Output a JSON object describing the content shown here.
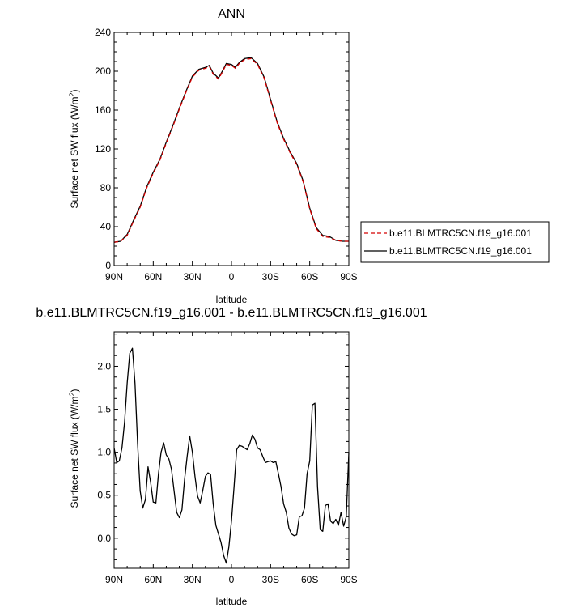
{
  "chart_data": [
    {
      "type": "line",
      "title": "ANN",
      "xlabel": "latitude",
      "ylabel": "Surface net SW flux (W/m",
      "ylabel_sup": "2",
      "ylabel_close": ")",
      "xlim": [
        90,
        -90
      ],
      "ylim": [
        0,
        240
      ],
      "xticks": [
        90,
        60,
        30,
        0,
        -30,
        -60,
        -90
      ],
      "xtick_labels": [
        "90N",
        "60N",
        "30N",
        "0",
        "30S",
        "60S",
        "90S"
      ],
      "yticks": [
        0,
        40,
        80,
        120,
        160,
        200,
        240
      ],
      "ytick_labels": [
        "0",
        "40",
        "80",
        "120",
        "160",
        "200",
        "240"
      ],
      "legend_position": "right",
      "x": [
        90,
        85,
        80,
        75,
        70,
        65,
        60,
        55,
        50,
        45,
        40,
        35,
        30,
        25,
        20,
        17,
        14,
        10,
        7,
        4,
        0,
        -3,
        -6,
        -10,
        -15,
        -20,
        -25,
        -30,
        -35,
        -40,
        -45,
        -50,
        -55,
        -60,
        -65,
        -70,
        -75,
        -80,
        -85,
        -90
      ],
      "series": [
        {
          "name": "b.e11.BLMTRC5CN.f19_g16.001",
          "color": "#d40000",
          "dash": "dashed",
          "values": [
            24,
            25,
            31,
            46,
            60,
            80,
            95,
            108,
            126,
            143,
            161,
            178,
            194,
            201,
            203,
            205,
            197,
            192,
            199,
            207,
            206,
            203,
            208,
            212,
            213,
            207,
            193,
            170,
            147,
            130,
            116,
            104,
            86,
            58,
            38,
            30,
            29,
            26,
            25,
            25
          ]
        },
        {
          "name": "b.e11.BLMTRC5CN.f19_g16.001",
          "color": "#000000",
          "dash": "solid",
          "values": [
            24,
            25,
            32,
            47,
            61,
            81,
            96,
            109,
            127,
            144,
            162,
            179,
            195,
            202,
            204,
            206,
            198,
            193,
            200,
            208,
            207,
            204,
            209,
            213,
            214,
            208,
            194,
            171,
            148,
            131,
            117,
            105,
            87,
            59,
            39,
            31,
            30,
            26,
            25,
            25
          ]
        }
      ]
    },
    {
      "type": "line",
      "title": "b.e11.BLMTRC5CN.f19_g16.001 - b.e11.BLMTRC5CN.f19_g16.001",
      "xlabel": "latitude",
      "ylabel": "Surface net SW flux (W/m",
      "ylabel_sup": "2",
      "ylabel_close": ")",
      "xlim": [
        90,
        -90
      ],
      "ylim": [
        -0.35,
        2.4
      ],
      "xticks": [
        90,
        60,
        30,
        0,
        -30,
        -60,
        -90
      ],
      "xtick_labels": [
        "90N",
        "60N",
        "30N",
        "0",
        "30S",
        "60S",
        "90S"
      ],
      "yticks": [
        0,
        0.5,
        1,
        1.5,
        2
      ],
      "ytick_labels": [
        "0.0",
        "0.5",
        "1.0",
        "1.5",
        "2.0"
      ],
      "series": [
        {
          "color": "#000000",
          "dash": "solid",
          "x": [
            90,
            88,
            86,
            84,
            82,
            80,
            78,
            76,
            74,
            72,
            70,
            68,
            66,
            64,
            62,
            60,
            58,
            56,
            54,
            52,
            50,
            48,
            46,
            44,
            42,
            40,
            38,
            36,
            34,
            32,
            30,
            28,
            26,
            24,
            22,
            20,
            18,
            16,
            14,
            12,
            10,
            8,
            6,
            4,
            2,
            0,
            -2,
            -4,
            -6,
            -8,
            -10,
            -12,
            -14,
            -16,
            -18,
            -20,
            -22,
            -24,
            -26,
            -28,
            -30,
            -32,
            -34,
            -36,
            -38,
            -40,
            -42,
            -44,
            -46,
            -48,
            -50,
            -52,
            -54,
            -56,
            -58,
            -60,
            -62,
            -64,
            -66,
            -68,
            -70,
            -72,
            -74,
            -76,
            -78,
            -80,
            -82,
            -84,
            -86,
            -88,
            -90
          ],
          "values": [
            1.05,
            0.88,
            0.9,
            1.05,
            1.35,
            1.8,
            2.15,
            2.21,
            1.8,
            1.1,
            0.55,
            0.35,
            0.45,
            0.83,
            0.65,
            0.42,
            0.41,
            0.75,
            1.0,
            1.11,
            0.97,
            0.92,
            0.8,
            0.55,
            0.3,
            0.24,
            0.33,
            0.68,
            0.95,
            1.19,
            1.0,
            0.72,
            0.49,
            0.41,
            0.56,
            0.72,
            0.76,
            0.74,
            0.4,
            0.15,
            0.05,
            -0.05,
            -0.2,
            -0.29,
            -0.1,
            0.2,
            0.6,
            1.03,
            1.08,
            1.07,
            1.05,
            1.03,
            1.1,
            1.2,
            1.15,
            1.05,
            1.03,
            0.95,
            0.88,
            0.89,
            0.9,
            0.88,
            0.89,
            0.75,
            0.6,
            0.4,
            0.3,
            0.12,
            0.05,
            0.03,
            0.04,
            0.25,
            0.26,
            0.35,
            0.75,
            0.9,
            1.55,
            1.57,
            0.6,
            0.1,
            0.08,
            0.38,
            0.4,
            0.2,
            0.17,
            0.22,
            0.15,
            0.3,
            0.14,
            0.25,
            1.0
          ]
        }
      ]
    }
  ]
}
